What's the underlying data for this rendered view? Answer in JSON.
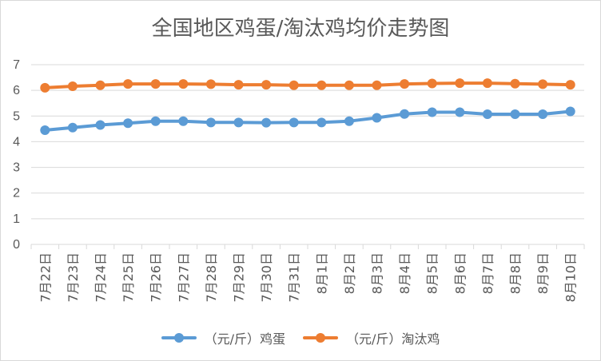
{
  "chart_data": {
    "type": "line",
    "title": "全国地区鸡蛋/淘汰鸡均价走势图",
    "categories": [
      "7月22日",
      "7月23日",
      "7月24日",
      "7月25日",
      "7月26日",
      "7月27日",
      "7月28日",
      "7月29日",
      "7月30日",
      "7月31日",
      "8月1日",
      "8月2日",
      "8月3日",
      "8月4日",
      "8月5日",
      "8月6日",
      "8月7日",
      "8月8日",
      "8月9日",
      "8月10日"
    ],
    "ylim": [
      0,
      7
    ],
    "yticks": [
      "0",
      "1",
      "2",
      "3",
      "4",
      "5",
      "6",
      "7"
    ],
    "grid": true,
    "legend_position": "bottom",
    "series": [
      {
        "name": "（元/斤）鸡蛋",
        "color": "#5b9bd5",
        "values": [
          4.45,
          4.55,
          4.65,
          4.72,
          4.8,
          4.8,
          4.75,
          4.75,
          4.74,
          4.75,
          4.75,
          4.8,
          4.93,
          5.08,
          5.15,
          5.15,
          5.07,
          5.07,
          5.07,
          5.18
        ]
      },
      {
        "name": "（元/斤）淘汰鸡",
        "color": "#ed7d31",
        "values": [
          6.1,
          6.16,
          6.2,
          6.25,
          6.25,
          6.25,
          6.24,
          6.22,
          6.22,
          6.2,
          6.2,
          6.2,
          6.2,
          6.25,
          6.27,
          6.28,
          6.28,
          6.26,
          6.24,
          6.22
        ]
      }
    ]
  }
}
